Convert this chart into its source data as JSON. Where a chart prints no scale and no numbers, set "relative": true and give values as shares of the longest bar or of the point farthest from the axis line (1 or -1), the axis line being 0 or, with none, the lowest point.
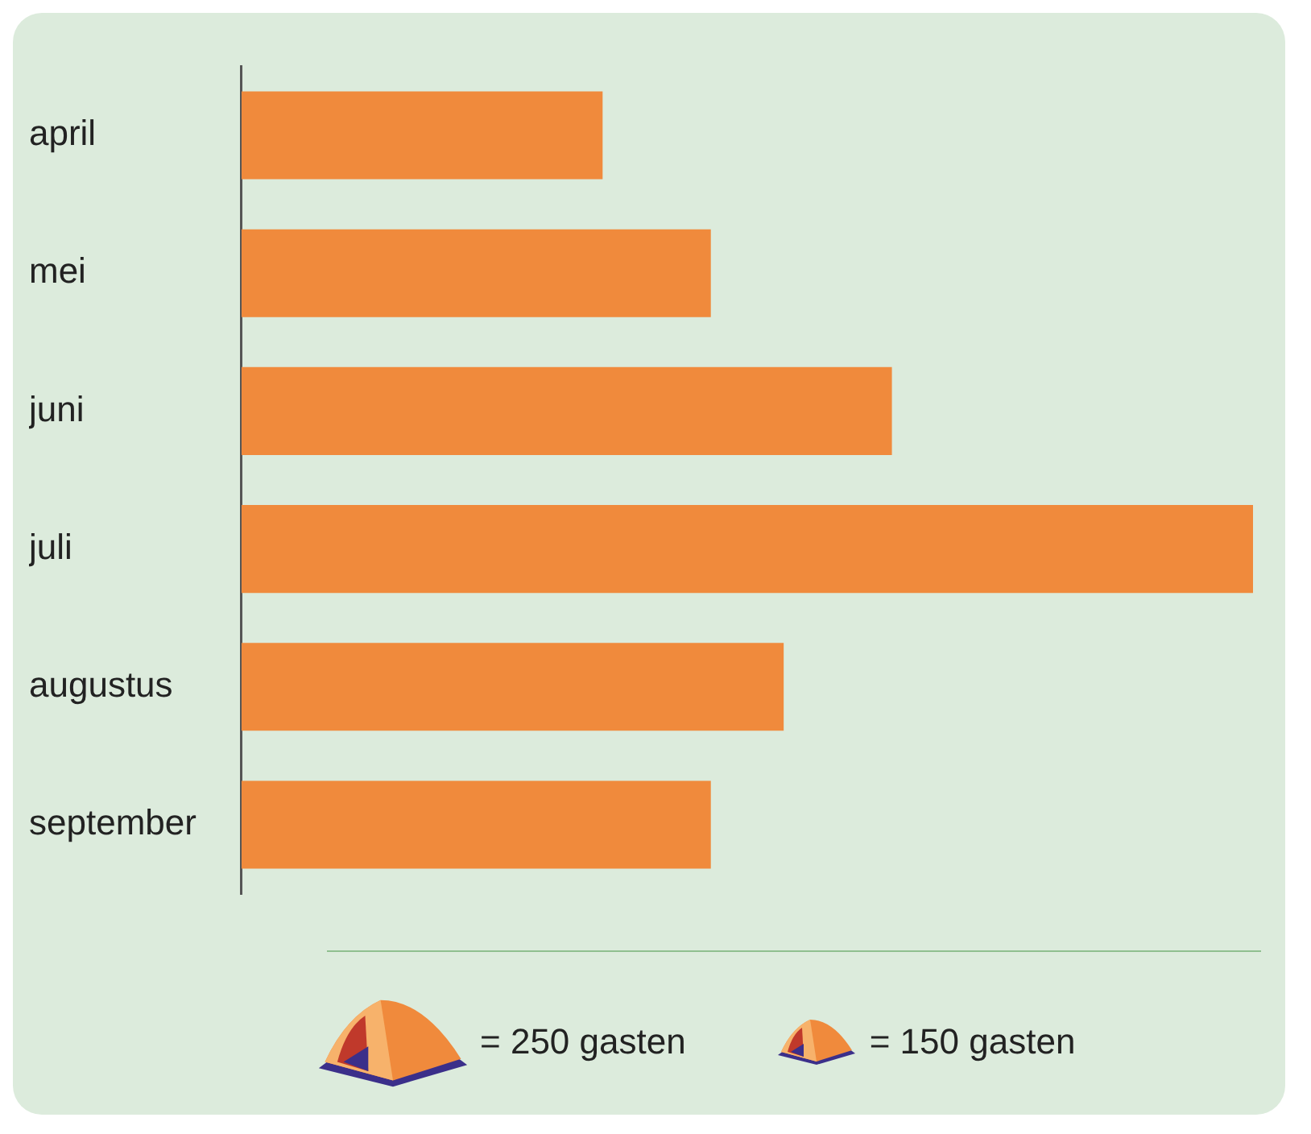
{
  "chart_data": {
    "type": "bar",
    "orientation": "horizontal",
    "relative": true,
    "categories": [
      "april",
      "mei",
      "juni",
      "juli",
      "augustus",
      "september"
    ],
    "values": [
      0.357,
      0.464,
      0.643,
      1.0,
      0.536,
      0.464
    ],
    "color": "#f08a3c",
    "legend": false,
    "annotations": [
      "= 250 gasten",
      "= 150 gasten"
    ]
  }
}
